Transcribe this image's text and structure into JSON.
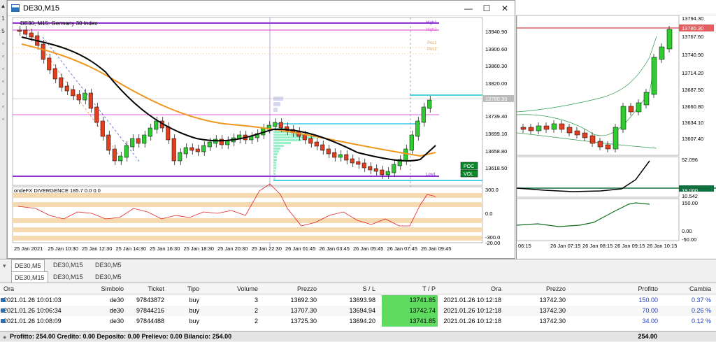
{
  "window": {
    "title": "DE30,M15",
    "chart_label": "DE30, M15:  Germany 30 Index",
    "min_glyph": "—",
    "max_glyph": "☐",
    "close_glyph": "✕"
  },
  "left_strip": [
    "▲",
    "1",
    "5",
    "▫",
    "▫",
    "▫",
    "▫",
    "▫",
    "▫",
    "▫"
  ],
  "price_axis": [
    "13940.90",
    "13900.60",
    "13860.30",
    "13820.00",
    "13780.30",
    "13739.40",
    "13699.10",
    "13658.80",
    "13618.50"
  ],
  "current_price": "13780.30",
  "indicator": {
    "name": "ondeFX DIVERGENCE 185.7 0.0 0.0",
    "axis": [
      "300.0",
      "0.0",
      "-300.0",
      "-20.00"
    ]
  },
  "time_axis": [
    "25 Jan 2021",
    "25 Jan 10:30",
    "25 Jan 12:30",
    "25 Jan 14:30",
    "25 Jan 16:30",
    "25 Jan 18:30",
    "25 Jan 20:30",
    "25 Jan 22:30",
    "26 Jan 01:45",
    "26 Jan 03:45",
    "26 Jan 05:45",
    "26 Jan 07:45",
    "26 Jan 09:45"
  ],
  "level_labels": {
    "high1": "High1",
    "high2": "High2",
    "poc1": "Poc1",
    "poc2": "Poc2",
    "low1": "Low1",
    "poc_badge": "POC",
    "vol_badge": "VOL"
  },
  "right_chart": {
    "price_axis": [
      "13794.30",
      "13767.60",
      "13740.90",
      "13714.20",
      "13687.50",
      "13660.80",
      "13634.10",
      "13607.40"
    ],
    "current_price": "13780.30",
    "ind1_axis": [
      "52.096",
      "19.000",
      "10.542"
    ],
    "ind2_axis": [
      "150.00",
      "0.00",
      "-50.00"
    ],
    "time_axis": [
      "06:15",
      "26 Jan 07:15",
      "26 Jan 08:15",
      "26 Jan 09:15",
      "26 Jan 10:15"
    ]
  },
  "chart_tabs": [
    "DE30,M5",
    "DE30,M15",
    "DE30,M5"
  ],
  "terminal_tabs": [
    "DE30,M15",
    "DE30,M15",
    "DE30,M5"
  ],
  "table": {
    "headers": [
      "Ora",
      "Simbolo",
      "Ticket",
      "Tipo",
      "Volume",
      "Prezzo",
      "S / L",
      "T / P",
      "Ora",
      "Prezzo",
      "Profitto",
      "Cambia"
    ],
    "rows": [
      [
        "2021.01.26 10:01:03",
        "de30",
        "97843872",
        "buy",
        "3",
        "13692.30",
        "13693.98",
        "13741.85",
        "2021.01.26 10:12:18",
        "13742.30",
        "150.00",
        "0.37 %"
      ],
      [
        "2021.01.26 10:06:34",
        "de30",
        "97844216",
        "buy",
        "2",
        "13707.30",
        "13694.94",
        "13742.74",
        "2021.01.26 10:12:18",
        "13742.30",
        "70.00",
        "0.26 %"
      ],
      [
        "2021.01.26 10:08:09",
        "de30",
        "97844488",
        "buy",
        "2",
        "13725.30",
        "13694.20",
        "13741.85",
        "2021.01.26 10:12:18",
        "13742.30",
        "34.00",
        "0.12 %"
      ]
    ]
  },
  "footer": {
    "summary": "Profitto: 254.00  Credito: 0.00  Deposito: 0.00  Prelievo: 0.00  Bilancio: 254.00",
    "total": "254.00"
  },
  "colors": {
    "up_candle": "#2ecc2e",
    "down_candle": "#e04020",
    "ma_orange": "#f0961e",
    "ma_black": "#000000",
    "level_magenta": "#e060e0",
    "level_purple": "#9030d0",
    "level_cyan": "#10c0e0",
    "volume_profile": "#98f0c8",
    "tp_green": "#5fdc5f"
  }
}
